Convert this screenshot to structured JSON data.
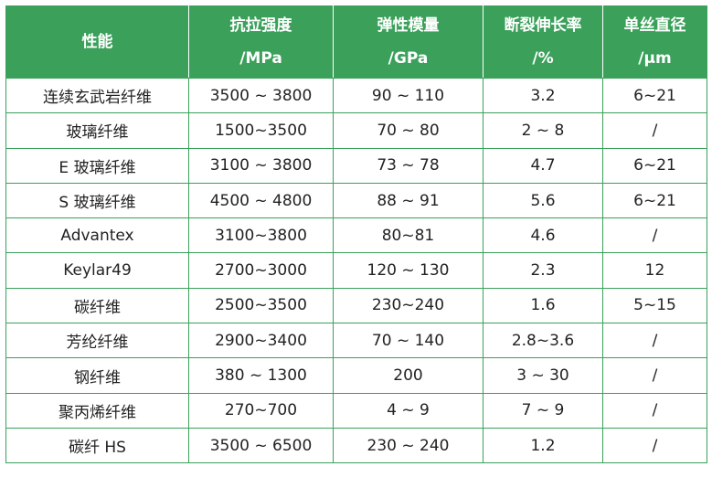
{
  "table": {
    "headers": [
      {
        "line1": "性能",
        "line2": ""
      },
      {
        "line1": "抗拉强度",
        "line2": "/MPa"
      },
      {
        "line1": "弹性模量",
        "line2": "/GPa"
      },
      {
        "line1": "断裂伸长率",
        "line2": "/%"
      },
      {
        "line1": "单丝直径",
        "line2": "/μm"
      }
    ],
    "rows": [
      [
        "连续玄武岩纤维",
        "3500 ~ 3800",
        "90 ~ 110",
        "3.2",
        "6~21"
      ],
      [
        "玻璃纤维",
        "1500~3500",
        "70 ~ 80",
        "2 ~ 8",
        "/"
      ],
      [
        "E 玻璃纤维",
        "3100 ~ 3800",
        "73 ~ 78",
        "4.7",
        "6~21"
      ],
      [
        "S 玻璃纤维",
        "4500 ~ 4800",
        "88 ~ 91",
        "5.6",
        "6~21"
      ],
      [
        "Advantex",
        "3100~3800",
        "80~81",
        "4.6",
        "/"
      ],
      [
        "Keylar49",
        "2700~3000",
        "120 ~ 130",
        "2.3",
        "12"
      ],
      [
        "碳纤维",
        "2500~3500",
        "230~240",
        "1.6",
        "5~15"
      ],
      [
        "芳纶纤维",
        "2900~3400",
        "70 ~ 140",
        "2.8~3.6",
        "/"
      ],
      [
        "钢纤维",
        "380 ~ 1300",
        "200",
        "3 ~ 30",
        "/"
      ],
      [
        "聚丙烯纤维",
        "270~700",
        "4 ~ 9",
        "7 ~ 9",
        "/"
      ],
      [
        "碳纤 HS",
        "3500 ~ 6500",
        "230 ~ 240",
        "1.2",
        "/"
      ]
    ]
  }
}
